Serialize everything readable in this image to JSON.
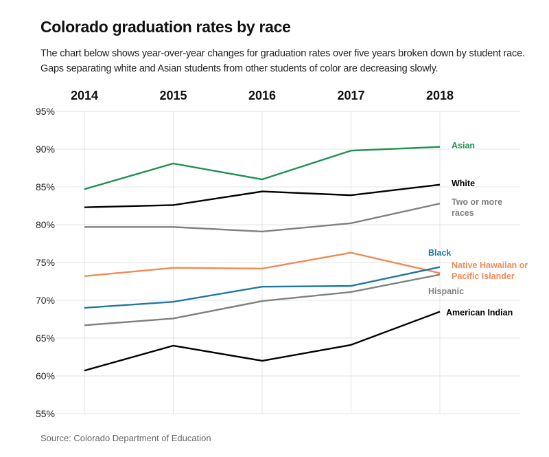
{
  "header": {
    "title": "Colorado graduation rates by race",
    "subtitle": "The chart below shows year-over-year changes for graduation rates over five years broken down by student race. Gaps separating white and Asian students from other students of color are decreasing slowly."
  },
  "footer": {
    "source": "Source: Colorado Department of Education"
  },
  "chart_data": {
    "type": "line",
    "title": "Colorado graduation rates by race",
    "xlabel": "",
    "ylabel": "",
    "x": [
      "2014",
      "2015",
      "2016",
      "2017",
      "2018"
    ],
    "x_axis_position": "top",
    "ylim": [
      55,
      95
    ],
    "yticks": [
      95,
      90,
      85,
      80,
      75,
      70,
      65,
      60,
      55
    ],
    "ytick_labels": [
      "95%",
      "90%",
      "85%",
      "80%",
      "75%",
      "70%",
      "65%",
      "60%",
      "55%"
    ],
    "grid": true,
    "legend": "direct-labels-right",
    "series": [
      {
        "name": "Asian",
        "label_lines": [
          "Asian"
        ],
        "color": "#1e9150",
        "values": [
          84.7,
          88.1,
          86.0,
          89.8,
          90.3
        ]
      },
      {
        "name": "White",
        "label_lines": [
          "White"
        ],
        "color": "#000000",
        "values": [
          82.3,
          82.6,
          84.4,
          83.9,
          85.3
        ]
      },
      {
        "name": "Two or more races",
        "label_lines": [
          "Two or more",
          "races"
        ],
        "color": "#808080",
        "values": [
          79.7,
          79.7,
          79.1,
          80.2,
          82.8
        ]
      },
      {
        "name": "Native Hawaiian or Pacific Islander",
        "label_lines": [
          "Native Hawaiian or",
          "Pacific Islander"
        ],
        "color": "#f08a55",
        "values": [
          73.2,
          74.3,
          74.2,
          76.3,
          73.6
        ]
      },
      {
        "name": "Black",
        "label_lines": [
          "Black"
        ],
        "color": "#1f77a4",
        "values": [
          69.0,
          69.8,
          71.8,
          71.9,
          74.4
        ]
      },
      {
        "name": "Hispanic",
        "label_lines": [
          "Hispanic"
        ],
        "color": "#808080",
        "values": [
          66.7,
          67.6,
          69.9,
          71.1,
          73.4
        ]
      },
      {
        "name": "American Indian",
        "label_lines": [
          "American Indian"
        ],
        "color": "#000000",
        "values": [
          60.7,
          64.0,
          62.0,
          64.1,
          68.5
        ]
      }
    ]
  }
}
